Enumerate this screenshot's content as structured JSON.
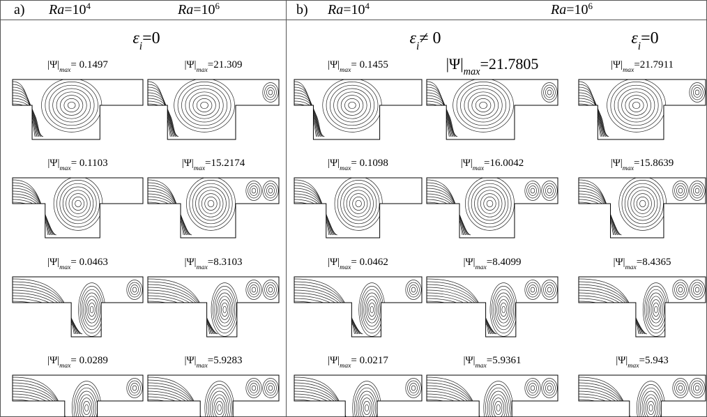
{
  "panels": [
    {
      "label": "a)",
      "headers": [
        {
          "ra": "Ra",
          "eq": "=10",
          "exp": "4"
        },
        {
          "ra": "Ra",
          "eq": "=10",
          "exp": "6"
        }
      ],
      "subheaders": [
        {
          "eps": "ε",
          "sub": "i",
          "rest": "=0"
        }
      ],
      "columns": [
        {
          "plots": [
            {
              "psi": "|Ψ|",
              "sub": "max",
              "value": "= 0.1497"
            },
            {
              "psi": "|Ψ|",
              "sub": "max",
              "value": "= 0.1103"
            },
            {
              "psi": "|Ψ|",
              "sub": "max",
              "value": "= 0.0463"
            },
            {
              "psi": "|Ψ|",
              "sub": "max",
              "value": "= 0.0289"
            }
          ]
        },
        {
          "plots": [
            {
              "psi": "|Ψ|",
              "sub": "max",
              "value": "=21.309"
            },
            {
              "psi": "|Ψ|",
              "sub": "max",
              "value": "=15.2174"
            },
            {
              "psi": "|Ψ|",
              "sub": "max",
              "value": "=8.3103"
            },
            {
              "psi": "|Ψ|",
              "sub": "max",
              "value": "=5.9283"
            }
          ]
        }
      ]
    },
    {
      "label": "b)",
      "headers": [
        {
          "ra": "Ra",
          "eq": "=10",
          "exp": "4"
        },
        {
          "ra": "Ra",
          "eq": "=10",
          "exp": "6"
        }
      ],
      "subheaders": [
        {
          "eps": "ε",
          "sub": "i",
          "rest": "≠ 0"
        },
        {
          "eps": "ε",
          "sub": "i",
          "rest": "=0"
        }
      ],
      "columns": [
        {
          "plots": [
            {
              "psi": "|Ψ|",
              "sub": "max",
              "value": "= 0.1455"
            },
            {
              "psi": "|Ψ|",
              "sub": "max",
              "value": "= 0.1098"
            },
            {
              "psi": "|Ψ|",
              "sub": "max",
              "value": "= 0.0462"
            },
            {
              "psi": "|Ψ|",
              "sub": "max",
              "value": "= 0.0217"
            }
          ]
        },
        {
          "plots": [
            {
              "psi": "|Ψ|",
              "sub": "max",
              "value": "=21.7805"
            },
            {
              "psi": "|Ψ|",
              "sub": "max",
              "value": "=16.0042"
            },
            {
              "psi": "|Ψ|",
              "sub": "max",
              "value": "=8.4099"
            },
            {
              "psi": "|Ψ|",
              "sub": "max",
              "value": "=5.9361"
            }
          ]
        },
        {
          "plots": [
            {
              "psi": "|Ψ|",
              "sub": "max",
              "value": "=21.7911"
            },
            {
              "psi": "|Ψ|",
              "sub": "max",
              "value": "=15.8639"
            },
            {
              "psi": "|Ψ|",
              "sub": "max",
              "value": "=8.4365"
            },
            {
              "psi": "|Ψ|",
              "sub": "max",
              "value": "=5.943"
            }
          ]
        }
      ]
    }
  ]
}
